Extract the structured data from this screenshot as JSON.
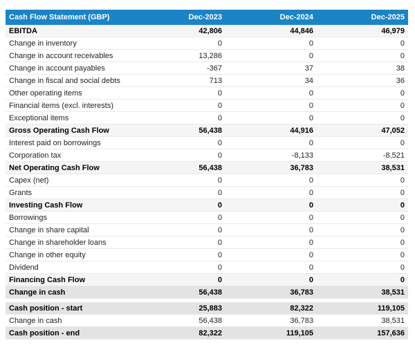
{
  "table": {
    "title": "Cash Flow Statement (GBP)",
    "columns": [
      "Dec-2023",
      "Dec-2024",
      "Dec-2025"
    ],
    "rows": [
      {
        "label": "EBITDA",
        "values": [
          "42,806",
          "44,846",
          "46,979"
        ],
        "style": "subtotal"
      },
      {
        "label": "Change in inventory",
        "values": [
          "0",
          "0",
          "0"
        ],
        "style": "normal"
      },
      {
        "label": "Change in account receivables",
        "values": [
          "13,286",
          "0",
          "0"
        ],
        "style": "normal"
      },
      {
        "label": "Change in account payables",
        "values": [
          "-367",
          "37",
          "38"
        ],
        "style": "normal"
      },
      {
        "label": "Change in fiscal and social debts",
        "values": [
          "713",
          "34",
          "36"
        ],
        "style": "normal"
      },
      {
        "label": "Other operating items",
        "values": [
          "0",
          "0",
          "0"
        ],
        "style": "normal"
      },
      {
        "label": "Financial items (excl. interests)",
        "values": [
          "0",
          "0",
          "0"
        ],
        "style": "normal"
      },
      {
        "label": "Exceptional items",
        "values": [
          "0",
          "0",
          "0"
        ],
        "style": "normal"
      },
      {
        "label": "Gross Operating Cash Flow",
        "values": [
          "56,438",
          "44,916",
          "47,052"
        ],
        "style": "subtotal"
      },
      {
        "label": "Interest paid on borrowings",
        "values": [
          "0",
          "0",
          "0"
        ],
        "style": "normal"
      },
      {
        "label": "Corporation tax",
        "values": [
          "0",
          "-8,133",
          "-8,521"
        ],
        "style": "normal"
      },
      {
        "label": "Net Operating Cash Flow",
        "values": [
          "56,438",
          "36,783",
          "38,531"
        ],
        "style": "subtotal"
      },
      {
        "label": "Capex (net)",
        "values": [
          "0",
          "0",
          "0"
        ],
        "style": "normal"
      },
      {
        "label": "Grants",
        "values": [
          "0",
          "0",
          "0"
        ],
        "style": "normal"
      },
      {
        "label": "Investing Cash Flow",
        "values": [
          "0",
          "0",
          "0"
        ],
        "style": "subtotal"
      },
      {
        "label": "Borrowings",
        "values": [
          "0",
          "0",
          "0"
        ],
        "style": "normal"
      },
      {
        "label": "Change in share capital",
        "values": [
          "0",
          "0",
          "0"
        ],
        "style": "normal"
      },
      {
        "label": "Change in shareholder loans",
        "values": [
          "0",
          "0",
          "0"
        ],
        "style": "normal"
      },
      {
        "label": "Change in other equity",
        "values": [
          "0",
          "0",
          "0"
        ],
        "style": "normal"
      },
      {
        "label": "Dividend",
        "values": [
          "0",
          "0",
          "0"
        ],
        "style": "normal"
      },
      {
        "label": "Financing Cash Flow",
        "values": [
          "0",
          "0",
          "0"
        ],
        "style": "subtotal"
      },
      {
        "label": "Change in cash",
        "values": [
          "56,438",
          "36,783",
          "38,531"
        ],
        "style": "total",
        "gap_after": true
      },
      {
        "label": "Cash position - start",
        "values": [
          "25,883",
          "82,322",
          "119,105"
        ],
        "style": "total"
      },
      {
        "label": "Change in cash",
        "values": [
          "56,438",
          "36,783",
          "38,531"
        ],
        "style": "normal"
      },
      {
        "label": "Cash position - end",
        "values": [
          "82,322",
          "119,105",
          "157,636"
        ],
        "style": "total"
      }
    ]
  },
  "colors": {
    "header_bg": "#1b84c7",
    "header_text": "#ffffff",
    "subtotal_bg": "#f5f5f6",
    "total_bg": "#e3e3e3",
    "row_border": "#e9e9e9",
    "body_text": "#1f1f1f"
  },
  "chart_data": {
    "type": "table",
    "title": "Cash Flow Statement (GBP)",
    "columns": [
      "Dec-2023",
      "Dec-2024",
      "Dec-2025"
    ],
    "rows": [
      [
        "EBITDA",
        42806,
        44846,
        46979
      ],
      [
        "Change in inventory",
        0,
        0,
        0
      ],
      [
        "Change in account receivables",
        13286,
        0,
        0
      ],
      [
        "Change in account payables",
        -367,
        37,
        38
      ],
      [
        "Change in fiscal and social debts",
        713,
        34,
        36
      ],
      [
        "Other operating items",
        0,
        0,
        0
      ],
      [
        "Financial items (excl. interests)",
        0,
        0,
        0
      ],
      [
        "Exceptional items",
        0,
        0,
        0
      ],
      [
        "Gross Operating Cash Flow",
        56438,
        44916,
        47052
      ],
      [
        "Interest paid on borrowings",
        0,
        0,
        0
      ],
      [
        "Corporation tax",
        0,
        -8133,
        -8521
      ],
      [
        "Net Operating Cash Flow",
        56438,
        36783,
        38531
      ],
      [
        "Capex (net)",
        0,
        0,
        0
      ],
      [
        "Grants",
        0,
        0,
        0
      ],
      [
        "Investing Cash Flow",
        0,
        0,
        0
      ],
      [
        "Borrowings",
        0,
        0,
        0
      ],
      [
        "Change in share capital",
        0,
        0,
        0
      ],
      [
        "Change in shareholder loans",
        0,
        0,
        0
      ],
      [
        "Change in other equity",
        0,
        0,
        0
      ],
      [
        "Dividend",
        0,
        0,
        0
      ],
      [
        "Financing Cash Flow",
        0,
        0,
        0
      ],
      [
        "Change in cash",
        56438,
        36783,
        38531
      ],
      [
        "Cash position - start",
        25883,
        82322,
        119105
      ],
      [
        "Change in cash",
        56438,
        36783,
        38531
      ],
      [
        "Cash position - end",
        82322,
        119105,
        157636
      ]
    ]
  }
}
